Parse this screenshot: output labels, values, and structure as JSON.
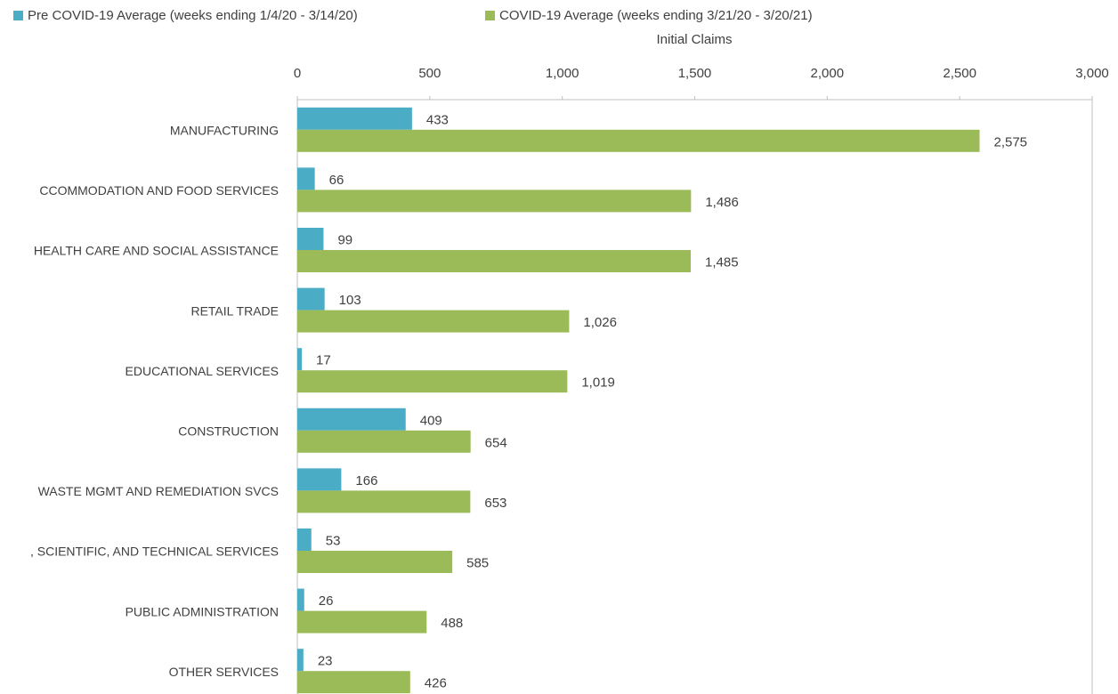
{
  "chart_data": {
    "type": "hbar",
    "x_axis_label": "Initial Claims",
    "categories": [
      "MANUFACTURING",
      "CCOMMODATION AND FOOD SERVICES",
      "HEALTH CARE AND SOCIAL ASSISTANCE",
      "RETAIL TRADE",
      "EDUCATIONAL SERVICES",
      "CONSTRUCTION",
      "WASTE MGMT AND REMEDIATION SVCS",
      ", SCIENTIFIC, AND TECHNICAL SERVICES",
      "PUBLIC ADMINISTRATION",
      "OTHER SERVICES"
    ],
    "series": [
      {
        "name": "Pre COVID-19 Average (weeks ending 1/4/20 - 3/14/20)",
        "color": "#4bacc6",
        "values": [
          433,
          66,
          99,
          103,
          17,
          409,
          166,
          53,
          26,
          23
        ]
      },
      {
        "name": "COVID-19 Average (weeks ending 3/21/20 - 3/20/21)",
        "color": "#9bbb59",
        "values": [
          2575,
          1486,
          1485,
          1026,
          1019,
          654,
          653,
          585,
          488,
          426
        ],
        "value_labels": [
          "2,575",
          "1,486",
          "1,485",
          "1,026",
          "1,019",
          "654",
          "653",
          "585",
          "488",
          "426"
        ]
      }
    ],
    "xlim": [
      0,
      3000
    ],
    "xticks": [
      0,
      500,
      {
        "value": 1000,
        "label": "1,000"
      },
      {
        "value": 1500,
        "label": "1,500"
      },
      {
        "value": 2000,
        "label": "2,000"
      },
      {
        "value": 2500,
        "label": "2,500"
      },
      {
        "value": 3000,
        "label": "3,000"
      }
    ],
    "grid": false,
    "legend": "top"
  }
}
